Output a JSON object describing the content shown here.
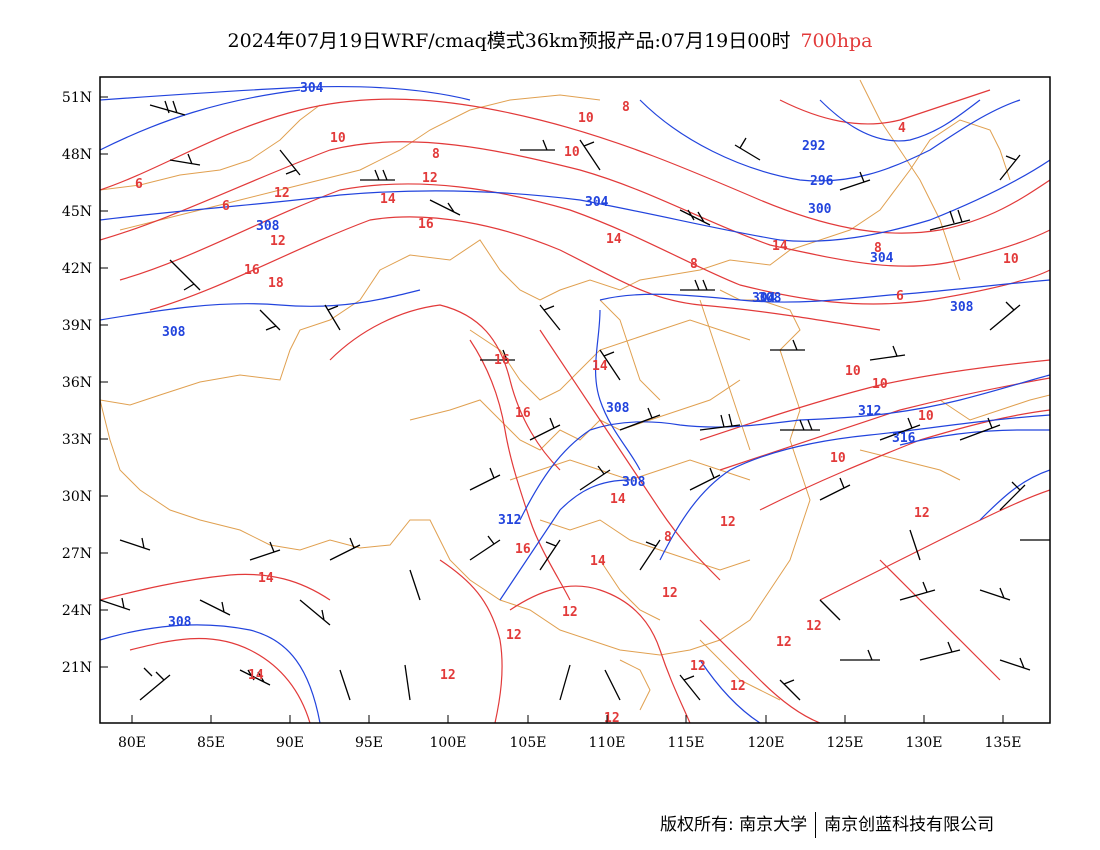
{
  "title": {
    "main": "2024年07月19日WRF/cmaq模式36km预报产品:07月19日00时",
    "level": "700hpa"
  },
  "axes": {
    "lat_labels": [
      "51N",
      "48N",
      "45N",
      "42N",
      "39N",
      "36N",
      "33N",
      "30N",
      "27N",
      "24N",
      "21N"
    ],
    "lon_labels": [
      "80E",
      "85E",
      "90E",
      "95E",
      "100E",
      "105E",
      "110E",
      "115E",
      "120E",
      "125E",
      "130E",
      "135E"
    ]
  },
  "colors": {
    "height_contour": "#2244dd",
    "temperature_contour": "#e23a3a",
    "boundary": "#e0a050",
    "wind_barb": "#000000"
  },
  "contour_labels": {
    "height": [
      "304",
      "292",
      "296",
      "304",
      "300",
      "304",
      "308",
      "308",
      "304",
      "308",
      "308",
      "312",
      "316",
      "308",
      "312",
      "308",
      "308"
    ],
    "temperature": [
      "8",
      "10",
      "6",
      "8",
      "10",
      "12",
      "6",
      "14",
      "16",
      "14",
      "10",
      "12",
      "16",
      "14",
      "18",
      "8",
      "6",
      "4",
      "10",
      "8",
      "10",
      "16",
      "14",
      "16",
      "10",
      "10",
      "10",
      "14",
      "12",
      "14",
      "16",
      "14",
      "12",
      "8",
      "12",
      "12",
      "12",
      "12",
      "12",
      "14",
      "12",
      "12",
      "12",
      "12",
      "12"
    ]
  },
  "credits": {
    "left": "版权所有: 南京大学",
    "right": "南京创蓝科技有限公司"
  }
}
